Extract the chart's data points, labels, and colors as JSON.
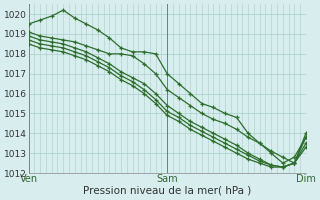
{
  "title": "",
  "xlabel": "Pression niveau de la mer( hPa )",
  "background_color": "#d8eeee",
  "grid_color": "#aacccc",
  "grid_color_dark": "#88bbbb",
  "line_color": "#2d6e2d",
  "ylim": [
    1012,
    1020.5
  ],
  "xlim": [
    0,
    48
  ],
  "xticks": [
    0,
    24,
    48
  ],
  "xtick_labels": [
    "Ven",
    "Sam",
    "Dim"
  ],
  "yticks": [
    1012,
    1013,
    1014,
    1015,
    1016,
    1017,
    1018,
    1019,
    1020
  ],
  "series": [
    {
      "x": [
        0,
        2,
        4,
        6,
        8,
        10,
        12,
        14,
        16,
        18,
        20,
        22,
        24,
        26,
        28,
        30,
        32,
        34,
        36,
        38,
        40,
        42,
        44,
        46,
        48
      ],
      "y": [
        1019.5,
        1019.7,
        1019.9,
        1020.2,
        1019.8,
        1019.5,
        1019.2,
        1018.8,
        1018.3,
        1018.1,
        1018.1,
        1018.0,
        1017.0,
        1016.5,
        1016.0,
        1015.5,
        1015.3,
        1015.0,
        1014.8,
        1014.0,
        1013.5,
        1013.0,
        1012.5,
        1012.8,
        1013.8
      ]
    },
    {
      "x": [
        0,
        2,
        4,
        6,
        8,
        10,
        12,
        14,
        16,
        18,
        20,
        22,
        24,
        26,
        28,
        30,
        32,
        34,
        36,
        38,
        40,
        42,
        44,
        46,
        48
      ],
      "y": [
        1019.1,
        1018.9,
        1018.8,
        1018.7,
        1018.6,
        1018.4,
        1018.2,
        1018.0,
        1018.0,
        1017.9,
        1017.5,
        1017.0,
        1016.2,
        1015.8,
        1015.4,
        1015.0,
        1014.7,
        1014.5,
        1014.2,
        1013.8,
        1013.5,
        1013.1,
        1012.8,
        1012.5,
        1013.3
      ]
    },
    {
      "x": [
        0,
        2,
        4,
        6,
        8,
        10,
        12,
        14,
        16,
        18,
        20,
        22,
        24,
        26,
        28,
        30,
        32,
        34,
        36,
        38,
        40,
        42,
        44,
        46,
        48
      ],
      "y": [
        1018.9,
        1018.7,
        1018.6,
        1018.5,
        1018.3,
        1018.1,
        1017.8,
        1017.5,
        1017.1,
        1016.8,
        1016.5,
        1016.0,
        1015.4,
        1015.0,
        1014.6,
        1014.3,
        1014.0,
        1013.7,
        1013.4,
        1013.0,
        1012.7,
        1012.4,
        1012.3,
        1012.5,
        1013.5
      ]
    },
    {
      "x": [
        0,
        2,
        4,
        6,
        8,
        10,
        12,
        14,
        16,
        18,
        20,
        22,
        24,
        26,
        28,
        30,
        32,
        34,
        36,
        38,
        40,
        42,
        44,
        46,
        48
      ],
      "y": [
        1018.7,
        1018.5,
        1018.4,
        1018.3,
        1018.1,
        1017.9,
        1017.6,
        1017.3,
        1016.9,
        1016.6,
        1016.2,
        1015.7,
        1015.1,
        1014.8,
        1014.4,
        1014.1,
        1013.8,
        1013.5,
        1013.2,
        1012.9,
        1012.6,
        1012.4,
        1012.3,
        1012.5,
        1013.8
      ]
    },
    {
      "x": [
        0,
        2,
        4,
        6,
        8,
        10,
        12,
        14,
        16,
        18,
        20,
        22,
        24,
        26,
        28,
        30,
        32,
        34,
        36,
        38,
        40,
        42,
        44,
        46,
        48
      ],
      "y": [
        1018.5,
        1018.3,
        1018.2,
        1018.1,
        1017.9,
        1017.7,
        1017.4,
        1017.1,
        1016.7,
        1016.4,
        1016.0,
        1015.5,
        1014.9,
        1014.6,
        1014.2,
        1013.9,
        1013.6,
        1013.3,
        1013.0,
        1012.7,
        1012.5,
        1012.3,
        1012.3,
        1012.5,
        1014.0
      ]
    }
  ]
}
